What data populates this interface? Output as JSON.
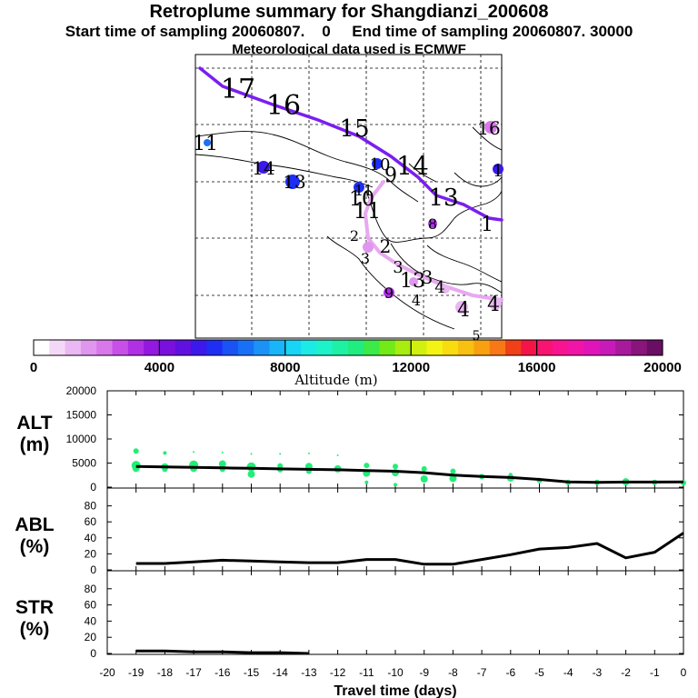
{
  "header": {
    "title": "Retroplume summary for Shangdianzi_200608",
    "subtitle_line1": "Start time of sampling 20060807.    0     End time of sampling 20060807. 30000",
    "subtitle_line2": "Meteorological data used is ECMWF"
  },
  "colors": {
    "route_main": "#7a1ef0",
    "route_lower": "#e8a8f0",
    "points_alt": "#22ee77",
    "line": "#000000"
  },
  "map": {
    "route_main_labels": [
      "17",
      "16",
      "15",
      "14",
      "13",
      "1"
    ],
    "route_lower_labels": [
      "11",
      "2",
      "3",
      "2",
      "3",
      "13",
      "3",
      "4",
      "4"
    ],
    "scatter_labels": [
      "11",
      "14",
      "13",
      "10",
      "9",
      "10",
      "11",
      "8",
      "16",
      "9",
      "4",
      "4",
      "5",
      "1"
    ]
  },
  "colorbar": {
    "axis_label": "Altitude (m)",
    "tick_labels": [
      "0",
      "4000",
      "8000",
      "12000",
      "16000",
      "20000"
    ],
    "colors": [
      "#ffffff",
      "#f4d8f8",
      "#eab8f2",
      "#e096ee",
      "#d878ea",
      "#c850e8",
      "#b030e6",
      "#9418e0",
      "#7a10de",
      "#6010e0",
      "#3c18ea",
      "#1e2ef4",
      "#1a52f6",
      "#1870f6",
      "#1a92f6",
      "#18b6f8",
      "#18d4f6",
      "#1ceae6",
      "#1ef2c8",
      "#1ef0a4",
      "#20ec80",
      "#3cea48",
      "#72ea18",
      "#a8ec10",
      "#d2f010",
      "#f4f414",
      "#f8dc10",
      "#f8c010",
      "#f8a010",
      "#f87818",
      "#f04018",
      "#f41448",
      "#f81470",
      "#f81490",
      "#f014a8",
      "#e014b8",
      "#c81ab8",
      "#a81a9c",
      "#88147c",
      "#6a0e64"
    ]
  },
  "chart_data": [
    {
      "type": "line",
      "panel": "ALT",
      "ylabel": "ALT\n(m)",
      "ylabel_lines": [
        "ALT",
        "(m)"
      ],
      "x": [
        -19,
        -18,
        -17,
        -16,
        -15,
        -14,
        -13,
        -12,
        -11,
        -10,
        -9,
        -8,
        -7,
        -6,
        -5,
        -4,
        -3,
        -2,
        -1,
        0
      ],
      "values": [
        4300,
        4200,
        4100,
        4000,
        3900,
        3800,
        3700,
        3600,
        3450,
        3300,
        3000,
        2500,
        2200,
        2000,
        1600,
        1100,
        1000,
        1050,
        1050,
        1100
      ],
      "xlim": [
        -20,
        0
      ],
      "ylim": [
        0,
        20000
      ],
      "ytick_labels": [
        "20000",
        "15000",
        "10000",
        "5000",
        "0"
      ],
      "scatter_series": {
        "name": "trajectory cluster altitudes",
        "x": [
          -19,
          -19,
          -19,
          -18,
          -18,
          -18,
          -17,
          -17,
          -17,
          -16,
          -16,
          -16,
          -15,
          -15,
          -15,
          -14,
          -14,
          -14,
          -13,
          -13,
          -13,
          -12,
          -12,
          -11,
          -11,
          -11,
          -10,
          -10,
          -10,
          -9,
          -9,
          -8,
          -8,
          -7,
          -6,
          -6,
          -5,
          -4,
          -3,
          -2,
          -1,
          0
        ],
        "y": [
          7500,
          4500,
          3900,
          7100,
          4200,
          3700,
          7300,
          4600,
          3900,
          7200,
          4800,
          3700,
          6900,
          4200,
          2700,
          6900,
          4400,
          3600,
          7000,
          4300,
          3300,
          6600,
          3800,
          4500,
          2900,
          1000,
          4300,
          3000,
          500,
          3800,
          1700,
          3300,
          1800,
          2200,
          2600,
          1900,
          1400,
          1000,
          1000,
          1100,
          1000,
          900
        ],
        "size": [
          3,
          5,
          4,
          2,
          4,
          3,
          1,
          5,
          4,
          1,
          4,
          3,
          1,
          5,
          4,
          1,
          3,
          3,
          1,
          4,
          3,
          1,
          4,
          3,
          4,
          2,
          3,
          4,
          2,
          3,
          4,
          3,
          4,
          3,
          2,
          4,
          3,
          3,
          3,
          4,
          3,
          3
        ]
      }
    },
    {
      "type": "line",
      "panel": "ABL",
      "ylabel": "ABL\n(%)",
      "ylabel_lines": [
        "ABL",
        "(%)"
      ],
      "x": [
        -19,
        -18,
        -17,
        -16,
        -15,
        -14,
        -13,
        -12,
        -11,
        -10,
        -9,
        -8,
        -7,
        -6,
        -5,
        -4,
        -3,
        -2,
        -1,
        0
      ],
      "values": [
        8,
        8,
        10,
        12,
        11,
        10,
        9,
        9,
        13,
        13,
        7,
        7,
        13,
        19,
        26,
        28,
        33,
        15,
        22,
        46
      ],
      "xlim": [
        -20,
        0
      ],
      "ylim": [
        0,
        100
      ],
      "ytick_labels": [
        "80",
        "60",
        "40",
        "20",
        "0"
      ]
    },
    {
      "type": "line",
      "panel": "STR",
      "ylabel": "STR\n(%)",
      "ylabel_lines": [
        "STR",
        "(%)"
      ],
      "x": [
        -19,
        -18,
        -17,
        -16,
        -15,
        -14,
        -13
      ],
      "values": [
        3,
        3,
        2,
        2,
        1,
        1,
        0
      ],
      "xlim": [
        -20,
        0
      ],
      "ylim": [
        0,
        100
      ],
      "ytick_labels": [
        "80",
        "60",
        "40",
        "20",
        "0"
      ],
      "xtick_labels": [
        "-20",
        "-19",
        "-18",
        "-17",
        "-16",
        "-15",
        "-14",
        "-13",
        "-12",
        "-11",
        "-10",
        "-9",
        "-8",
        "-7",
        "-6",
        "-5",
        "-4",
        "-3",
        "-2",
        "-1",
        "0"
      ],
      "xlabel": "Travel time (days)"
    }
  ]
}
